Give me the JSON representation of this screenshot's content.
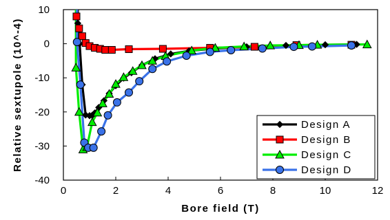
{
  "chart_data": {
    "type": "line",
    "title": "",
    "xlabel": "Bore field (T)",
    "ylabel": "Relative sextupole (10^-4)",
    "xlim": [
      0,
      12
    ],
    "ylim": [
      -40,
      10
    ],
    "xticks": [
      0,
      2,
      4,
      6,
      8,
      10,
      12
    ],
    "yticks": [
      10,
      0,
      -10,
      -20,
      -30,
      -40
    ],
    "xtick_labels": [
      "0",
      "2",
      "4",
      "6",
      "8",
      "10",
      "12"
    ],
    "ytick_labels": [
      "10",
      "0",
      "-10",
      "-20",
      "-30",
      "-40"
    ],
    "grid": false,
    "legend_position": "bottom-right",
    "series": [
      {
        "name": "Design A",
        "color": "#000000",
        "marker": "diamond",
        "x": [
          0.55,
          0.62,
          0.72,
          0.85,
          1.0,
          1.1,
          1.2,
          1.35,
          1.55,
          1.75,
          2.0,
          2.3,
          2.6,
          3.0,
          3.5,
          4.1,
          4.8,
          5.8,
          7.0,
          8.5,
          10.0,
          11.2
        ],
        "y": [
          6,
          0,
          -12,
          -20.9,
          -21.1,
          -21.0,
          -20.3,
          -18.7,
          -16.7,
          -14.6,
          -12.3,
          -10.1,
          -8.5,
          -6.3,
          -4.4,
          -3.0,
          -2.1,
          -1.4,
          -0.9,
          -0.5,
          -0.3,
          -0.2
        ]
      },
      {
        "name": "Design B",
        "color": "#ff0000",
        "marker": "square",
        "x": [
          0.5,
          0.6,
          0.72,
          0.85,
          1.0,
          1.2,
          1.4,
          1.6,
          1.85,
          2.5,
          3.8,
          5.6,
          7.3,
          8.9,
          11.0
        ],
        "y": [
          8.0,
          4.5,
          2.2,
          0.2,
          -0.7,
          -1.2,
          -1.5,
          -1.8,
          -1.8,
          -1.6,
          -1.5,
          -1.2,
          -0.9,
          -0.4,
          -0.3
        ]
      },
      {
        "name": "Design C",
        "color": "#00ee00",
        "marker": "triangle",
        "x": [
          0.48,
          0.6,
          0.75,
          0.9,
          1.1,
          1.3,
          1.5,
          1.75,
          2.0,
          2.3,
          2.65,
          3.0,
          3.4,
          3.9,
          4.9,
          5.8,
          6.9,
          7.9,
          9.0,
          9.7,
          11.6
        ],
        "y": [
          -7,
          -20,
          -31,
          -30.3,
          -23,
          -20.2,
          -17.5,
          -14.7,
          -11.8,
          -9.8,
          -8.0,
          -6.3,
          -5.0,
          -3.6,
          -2.0,
          -1.2,
          -0.8,
          -0.5,
          -0.4,
          -0.3,
          -0.2
        ]
      },
      {
        "name": "Design D",
        "color": "#3a72e8",
        "marker": "circle",
        "x": [
          0.52,
          0.65,
          0.8,
          0.95,
          1.15,
          1.45,
          1.7,
          2.05,
          2.5,
          2.9,
          3.4,
          3.95,
          4.7,
          5.6,
          6.4,
          7.6,
          8.8,
          9.5,
          11.0
        ],
        "y": [
          0.5,
          -12,
          -29,
          -30.5,
          -30.5,
          -25.7,
          -21.0,
          -17.2,
          -14.3,
          -11.0,
          -7.4,
          -5.2,
          -3.5,
          -2.4,
          -1.9,
          -1.4,
          -0.9,
          -0.8,
          -0.5
        ]
      }
    ]
  }
}
